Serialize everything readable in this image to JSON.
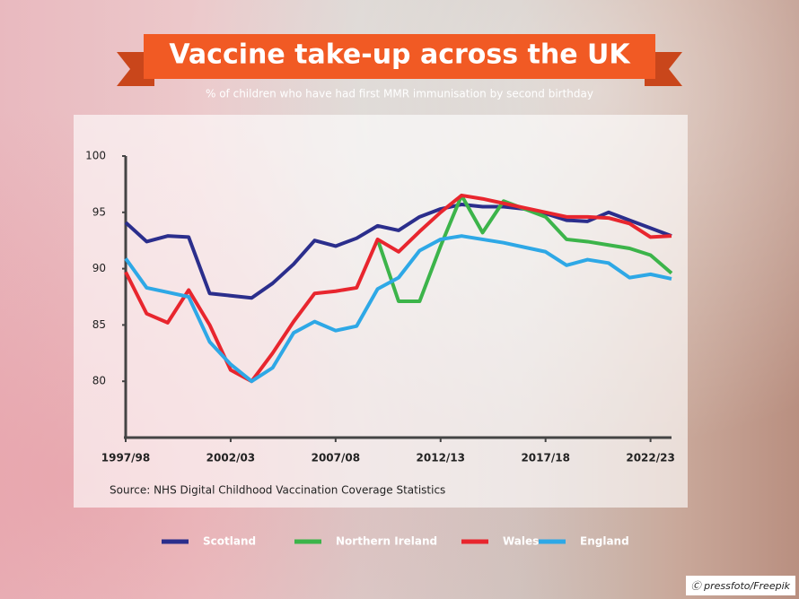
{
  "chart_data": {
    "type": "line",
    "title": "Vaccine take-up across the UK",
    "subtitle": "% of children who have had first MMR immunisation by second birthday",
    "source": "Source: NHS Digital Childhood Vaccination Coverage Statistics",
    "credit": "pressfoto/Freepik",
    "categories": [
      "1997/98",
      null,
      null,
      null,
      null,
      "2002/03",
      null,
      null,
      null,
      null,
      "2007/08",
      null,
      null,
      null,
      null,
      "2012/13",
      null,
      null,
      null,
      null,
      "2017/18",
      null,
      null,
      null,
      null,
      "2022/23",
      null
    ],
    "ylim": [
      75,
      100
    ],
    "yticks": [
      80,
      85,
      90,
      95,
      100
    ],
    "grid": false,
    "legend": "bottom",
    "series": [
      {
        "name": "Scotland",
        "color": "#2b2e8c",
        "values": [
          94.1,
          92.4,
          92.9,
          92.8,
          87.8,
          87.6,
          87.4,
          88.7,
          90.4,
          92.5,
          92.0,
          92.7,
          93.8,
          93.4,
          94.6,
          95.3,
          95.7,
          95.5,
          95.5,
          95.3,
          94.9,
          94.3,
          94.2,
          95.0,
          94.3,
          93.6,
          92.9
        ]
      },
      {
        "name": "Northern Ireland",
        "color": "#3cb44a",
        "values": [
          null,
          null,
          null,
          null,
          null,
          null,
          null,
          null,
          null,
          null,
          null,
          null,
          92.6,
          87.1,
          87.1,
          92.0,
          96.5,
          93.2,
          96.0,
          95.3,
          94.6,
          92.6,
          92.4,
          92.1,
          91.8,
          91.2,
          89.6
        ]
      },
      {
        "name": "Wales",
        "color": "#e8262e",
        "values": [
          89.7,
          86.0,
          85.2,
          88.1,
          85.0,
          81.0,
          80.0,
          82.5,
          85.3,
          87.8,
          88.0,
          88.3,
          92.6,
          91.5,
          93.3,
          95.0,
          96.5,
          96.2,
          95.8,
          95.4,
          95.0,
          94.6,
          94.6,
          94.5,
          94.0,
          92.8,
          92.9
        ]
      },
      {
        "name": "England",
        "color": "#2ea8e6",
        "values": [
          90.9,
          88.3,
          87.9,
          87.5,
          83.5,
          81.5,
          80.0,
          81.2,
          84.3,
          85.3,
          84.5,
          84.9,
          88.2,
          89.2,
          91.6,
          92.6,
          92.9,
          92.6,
          92.3,
          91.9,
          91.5,
          90.3,
          90.8,
          90.5,
          89.2,
          89.5,
          89.1
        ]
      }
    ]
  }
}
